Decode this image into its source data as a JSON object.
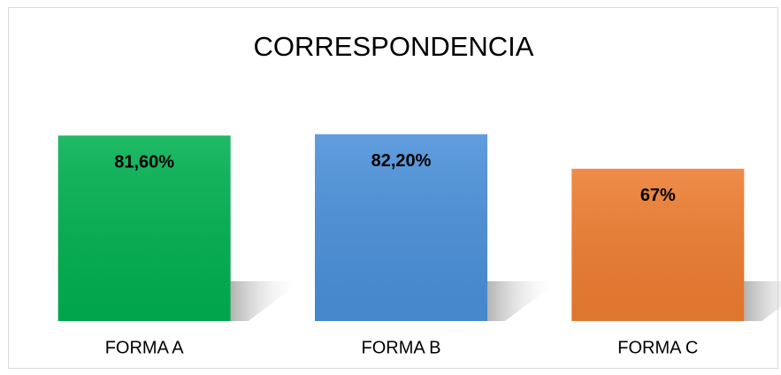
{
  "chart_data": {
    "type": "bar",
    "title": "CORRESPONDENCIA",
    "categories": [
      "FORMA A",
      "FORMA B",
      "FORMA C"
    ],
    "values": [
      81.6,
      82.2,
      67
    ],
    "value_labels": [
      "81,60%",
      "82,20%",
      "67%"
    ],
    "colors": [
      "#00b050",
      "#4a90d9",
      "#ed7d31"
    ],
    "ylim": [
      0,
      100
    ]
  }
}
